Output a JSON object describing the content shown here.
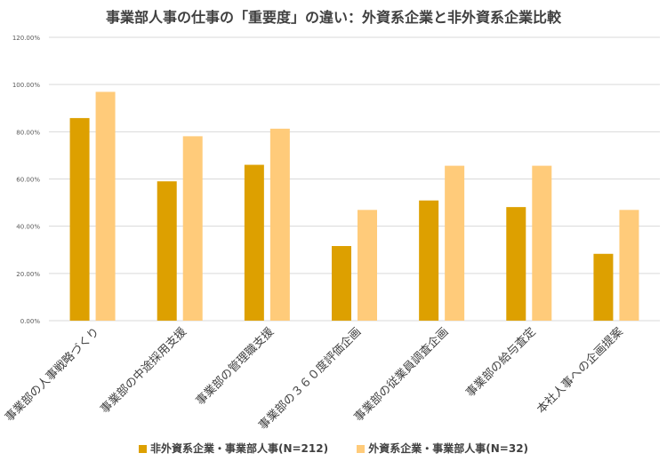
{
  "chart_data": {
    "type": "bar",
    "title": "事業部人事の仕事の「重要度」の違い：外資系企業と非外資系企業比較",
    "categories": [
      "事業部の人事戦略づくり",
      "事業部の中途採用支援",
      "事業部の管理職支援",
      "事業部の３６０度評価企画",
      "事業部の従業員調査企画",
      "事業部の給与査定",
      "本社人事への企画提案"
    ],
    "series": [
      {
        "name": "非外資系企業・事業部人事(N=212)",
        "color": "#DDA000",
        "values": [
          85.8,
          59.0,
          66.0,
          31.6,
          50.9,
          48.1,
          28.3
        ]
      },
      {
        "name": "外資系企業・事業部人事(N=32)",
        "color": "#FFCB7A",
        "values": [
          96.9,
          78.1,
          81.3,
          46.9,
          65.6,
          65.6,
          46.9
        ]
      }
    ],
    "yticks": [
      "0.00%",
      "20.00%",
      "40.00%",
      "60.00%",
      "80.00%",
      "100.00%",
      "120.00%"
    ],
    "ylim": [
      0,
      120
    ],
    "grid": true,
    "legend_position": "bottom"
  }
}
